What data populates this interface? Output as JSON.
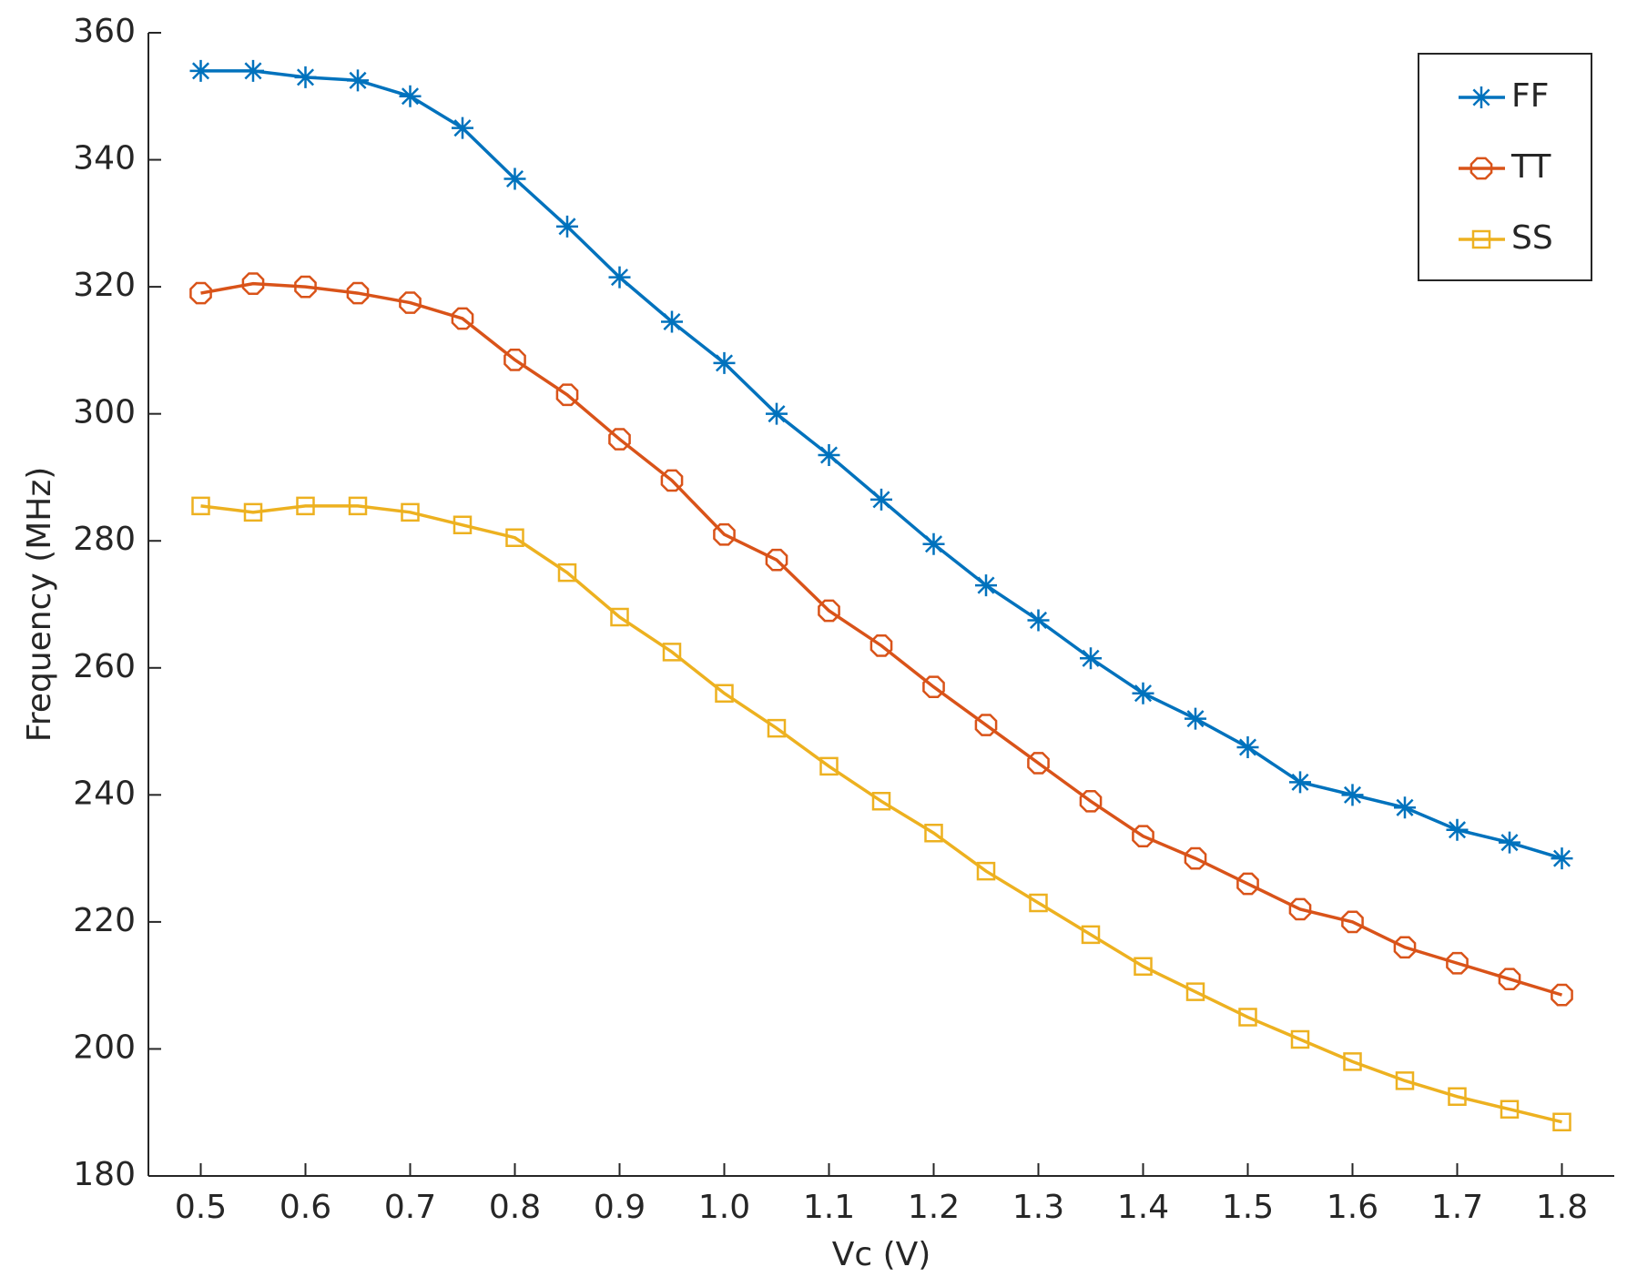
{
  "chart_data": {
    "type": "line",
    "xlabel": "Vc (V)",
    "ylabel": "Frequency (MHz)",
    "x": [
      0.5,
      0.55,
      0.6,
      0.65,
      0.7,
      0.75,
      0.8,
      0.85,
      0.9,
      0.95,
      1.0,
      1.05,
      1.1,
      1.15,
      1.2,
      1.25,
      1.3,
      1.35,
      1.4,
      1.45,
      1.5,
      1.55,
      1.6,
      1.65,
      1.7,
      1.75,
      1.8
    ],
    "series": [
      {
        "name": "FF",
        "color": "#0072bd",
        "marker": "star",
        "values": [
          354,
          354,
          353,
          352.5,
          350,
          345,
          337,
          329.5,
          321.5,
          314.5,
          308,
          300,
          293.5,
          286.5,
          279.5,
          273,
          267.5,
          261.5,
          256,
          252,
          247.5,
          242,
          240,
          238,
          234.5,
          232.5,
          230
        ]
      },
      {
        "name": "TT",
        "color": "#d95319",
        "marker": "octagon",
        "values": [
          319,
          320.5,
          320,
          319,
          317.5,
          315,
          308.5,
          303,
          296,
          289.5,
          281,
          277,
          269,
          263.5,
          257,
          251,
          245,
          239,
          233.5,
          230,
          226,
          222,
          220,
          216,
          213.5,
          211,
          208.5
        ]
      },
      {
        "name": "SS",
        "color": "#edb120",
        "marker": "square",
        "values": [
          285.5,
          284.5,
          285.5,
          285.5,
          284.5,
          282.5,
          280.5,
          275,
          268,
          262.5,
          256,
          250.5,
          244.5,
          239,
          234,
          228,
          223,
          218,
          213,
          209,
          205,
          201.5,
          198,
          195,
          192.5,
          190.5,
          188.5
        ]
      }
    ],
    "xlim": [
      0.45,
      1.85
    ],
    "xticks": [
      0.5,
      0.6,
      0.7,
      0.8,
      0.9,
      {
        "value": 1,
        "label": "1.0"
      },
      1.1,
      1.2,
      1.3,
      1.4,
      1.5,
      1.6,
      1.7,
      1.8
    ],
    "ylim": [
      180,
      360
    ],
    "yticks": [
      180,
      200,
      220,
      240,
      260,
      280,
      300,
      320,
      340,
      360
    ],
    "legend": "top-right",
    "grid": false
  }
}
